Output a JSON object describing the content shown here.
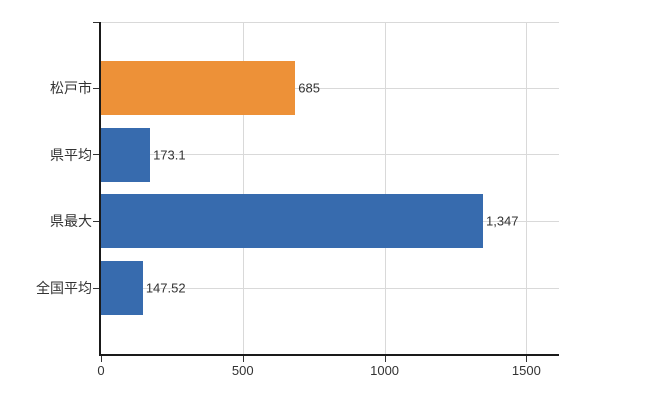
{
  "chart_data": {
    "type": "bar",
    "orientation": "horizontal",
    "title": "",
    "xlabel": "",
    "ylabel": "",
    "categories": [
      "松戸市",
      "県平均",
      "県最大",
      "全国平均"
    ],
    "values": [
      685,
      173.1,
      1347,
      147.52
    ],
    "value_labels": [
      "685",
      "173.1",
      "1,347",
      "147.52"
    ],
    "series": [
      {
        "name": "",
        "values": [
          685,
          173.1,
          1347,
          147.52
        ]
      }
    ],
    "bar_colors": [
      "#ed9138",
      "#376bae",
      "#376bae",
      "#376bae"
    ],
    "xlim": [
      0,
      1615
    ],
    "x_ticks": [
      0,
      500,
      1000,
      1500
    ],
    "x_tick_labels": [
      "0",
      "500",
      "1000",
      "1500"
    ],
    "grid": true,
    "legend": false,
    "colors": {
      "highlight_bar": "#ed9138",
      "default_bar": "#376bae",
      "gridline": "#d9d9d9",
      "axis": "#1a1a1a",
      "text": "#333333",
      "background": "#ffffff"
    }
  }
}
